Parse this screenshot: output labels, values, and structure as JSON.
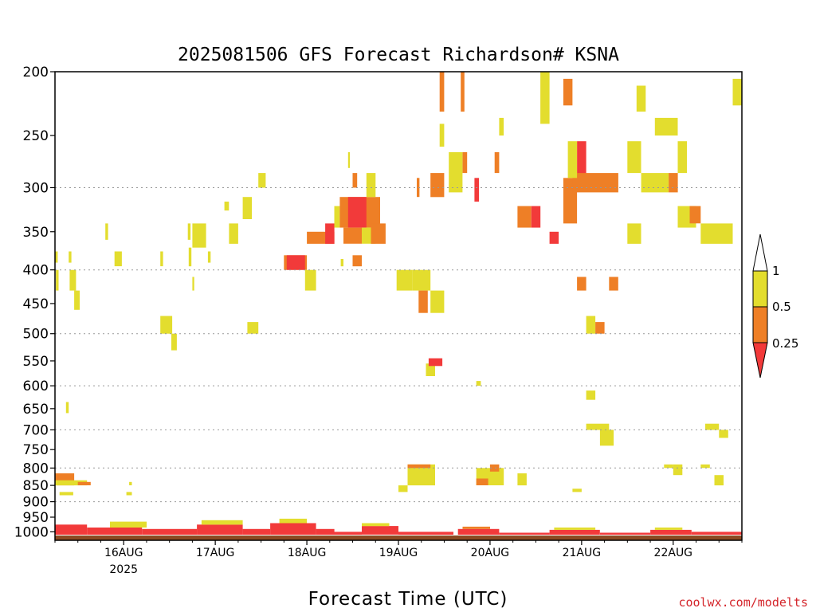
{
  "colors": {
    "level_low": "#f23a3a",
    "level_mid": "#ee7f26",
    "level_high": "#e3dd2e",
    "ground": "#8b4a22",
    "credit": "#d4242a"
  },
  "chart_data": {
    "type": "heatmap",
    "title": "2025081506 GFS Forecast Richardson# KSNA",
    "xlabel": "Forecast Time (UTC)",
    "ylabel": "",
    "credit": "coolwx.com/modelts",
    "y_scale": "log",
    "ylim": [
      1030,
      200
    ],
    "y_ticks": [
      200,
      250,
      300,
      350,
      400,
      450,
      500,
      550,
      600,
      650,
      700,
      750,
      800,
      850,
      900,
      950,
      1000
    ],
    "gridlines_at": [
      300,
      400,
      500,
      600,
      700,
      800,
      900
    ],
    "xlim_days": [
      15.25,
      22.75
    ],
    "x_ticks": [
      {
        "day": 16,
        "label": "16AUG",
        "sublabel": "2025"
      },
      {
        "day": 17,
        "label": "17AUG"
      },
      {
        "day": 18,
        "label": "18AUG"
      },
      {
        "day": 19,
        "label": "19AUG"
      },
      {
        "day": 20,
        "label": "20AUG"
      },
      {
        "day": 21,
        "label": "21AUG"
      },
      {
        "day": 22,
        "label": "22AUG"
      }
    ],
    "legend": {
      "placement": "right",
      "labels": [
        "1",
        "0.5",
        "0.25"
      ],
      "bins": [
        {
          "range": "0.5–1",
          "color": "#e3dd2e"
        },
        {
          "range": "0.25–0.5",
          "color": "#ee7f26"
        },
        {
          "range": "<0.25",
          "color": "#f23a3a"
        }
      ]
    },
    "cells": [
      {
        "t0": 15.25,
        "t1": 15.28,
        "p0": 375,
        "p1": 390,
        "bin": "high"
      },
      {
        "t0": 15.26,
        "t1": 15.29,
        "p0": 400,
        "p1": 430,
        "bin": "high"
      },
      {
        "t0": 15.4,
        "t1": 15.43,
        "p0": 375,
        "p1": 390,
        "bin": "high"
      },
      {
        "t0": 15.41,
        "t1": 15.48,
        "p0": 400,
        "p1": 430,
        "bin": "high"
      },
      {
        "t0": 15.46,
        "t1": 15.52,
        "p0": 430,
        "p1": 460,
        "bin": "high"
      },
      {
        "t0": 15.37,
        "t1": 15.4,
        "p0": 635,
        "p1": 660,
        "bin": "high"
      },
      {
        "t0": 15.25,
        "t1": 15.46,
        "p0": 815,
        "p1": 850,
        "bin": "mid"
      },
      {
        "t0": 15.25,
        "t1": 15.6,
        "p0": 835,
        "p1": 850,
        "bin": "high"
      },
      {
        "t0": 15.5,
        "t1": 15.64,
        "p0": 840,
        "p1": 850,
        "bin": "mid"
      },
      {
        "t0": 15.3,
        "t1": 15.45,
        "p0": 870,
        "p1": 880,
        "bin": "high"
      },
      {
        "t0": 15.8,
        "t1": 15.83,
        "p0": 340,
        "p1": 360,
        "bin": "high"
      },
      {
        "t0": 15.9,
        "t1": 15.98,
        "p0": 375,
        "p1": 395,
        "bin": "high"
      },
      {
        "t0": 16.03,
        "t1": 16.09,
        "p0": 870,
        "p1": 880,
        "bin": "high"
      },
      {
        "t0": 16.06,
        "t1": 16.09,
        "p0": 840,
        "p1": 850,
        "bin": "high"
      },
      {
        "t0": 16.4,
        "t1": 16.43,
        "p0": 375,
        "p1": 395,
        "bin": "high"
      },
      {
        "t0": 16.4,
        "t1": 16.53,
        "p0": 470,
        "p1": 500,
        "bin": "high"
      },
      {
        "t0": 16.52,
        "t1": 16.58,
        "p0": 500,
        "p1": 530,
        "bin": "high"
      },
      {
        "t0": 16.7,
        "t1": 16.73,
        "p0": 340,
        "p1": 360,
        "bin": "high"
      },
      {
        "t0": 16.75,
        "t1": 16.9,
        "p0": 340,
        "p1": 370,
        "bin": "high"
      },
      {
        "t0": 16.71,
        "t1": 16.74,
        "p0": 370,
        "p1": 395,
        "bin": "high"
      },
      {
        "t0": 16.75,
        "t1": 16.77,
        "p0": 410,
        "p1": 430,
        "bin": "high"
      },
      {
        "t0": 16.92,
        "t1": 16.95,
        "p0": 375,
        "p1": 390,
        "bin": "high"
      },
      {
        "t0": 17.1,
        "t1": 17.15,
        "p0": 315,
        "p1": 325,
        "bin": "high"
      },
      {
        "t0": 17.15,
        "t1": 17.25,
        "p0": 340,
        "p1": 365,
        "bin": "high"
      },
      {
        "t0": 17.3,
        "t1": 17.4,
        "p0": 310,
        "p1": 335,
        "bin": "high"
      },
      {
        "t0": 17.35,
        "t1": 17.47,
        "p0": 480,
        "p1": 500,
        "bin": "high"
      },
      {
        "t0": 17.47,
        "t1": 17.55,
        "p0": 285,
        "p1": 300,
        "bin": "high"
      },
      {
        "t0": 17.75,
        "t1": 18.0,
        "p0": 380,
        "p1": 400,
        "bin": "mid"
      },
      {
        "t0": 17.78,
        "t1": 17.98,
        "p0": 380,
        "p1": 400,
        "bin": "low"
      },
      {
        "t0": 17.98,
        "t1": 18.1,
        "p0": 400,
        "p1": 430,
        "bin": "high"
      },
      {
        "t0": 18.0,
        "t1": 18.3,
        "p0": 350,
        "p1": 365,
        "bin": "mid"
      },
      {
        "t0": 18.2,
        "t1": 18.3,
        "p0": 340,
        "p1": 365,
        "bin": "low"
      },
      {
        "t0": 18.37,
        "t1": 18.4,
        "p0": 385,
        "p1": 395,
        "bin": "high"
      },
      {
        "t0": 18.3,
        "t1": 18.36,
        "p0": 320,
        "p1": 345,
        "bin": "high"
      },
      {
        "t0": 18.36,
        "t1": 18.8,
        "p0": 310,
        "p1": 345,
        "bin": "mid"
      },
      {
        "t0": 18.45,
        "t1": 18.65,
        "p0": 310,
        "p1": 345,
        "bin": "low"
      },
      {
        "t0": 18.45,
        "t1": 18.47,
        "p0": 265,
        "p1": 280,
        "bin": "high"
      },
      {
        "t0": 18.5,
        "t1": 18.55,
        "p0": 285,
        "p1": 300,
        "bin": "mid"
      },
      {
        "t0": 18.65,
        "t1": 18.75,
        "p0": 285,
        "p1": 310,
        "bin": "high"
      },
      {
        "t0": 18.4,
        "t1": 18.6,
        "p0": 345,
        "p1": 365,
        "bin": "mid"
      },
      {
        "t0": 18.5,
        "t1": 18.6,
        "p0": 380,
        "p1": 395,
        "bin": "mid"
      },
      {
        "t0": 18.6,
        "t1": 18.75,
        "p0": 345,
        "p1": 365,
        "bin": "high"
      },
      {
        "t0": 18.7,
        "t1": 18.86,
        "p0": 340,
        "p1": 365,
        "bin": "mid"
      },
      {
        "t0": 18.98,
        "t1": 19.15,
        "p0": 400,
        "p1": 430,
        "bin": "high"
      },
      {
        "t0": 19.15,
        "t1": 19.35,
        "p0": 400,
        "p1": 430,
        "bin": "high"
      },
      {
        "t0": 19.22,
        "t1": 19.32,
        "p0": 430,
        "p1": 465,
        "bin": "mid"
      },
      {
        "t0": 19.35,
        "t1": 19.5,
        "p0": 430,
        "p1": 465,
        "bin": "high"
      },
      {
        "t0": 19.3,
        "t1": 19.4,
        "p0": 580,
        "p1": 555,
        "bin": "high"
      },
      {
        "t0": 19.33,
        "t1": 19.48,
        "p0": 545,
        "p1": 560,
        "bin": "low"
      },
      {
        "t0": 19.2,
        "t1": 19.23,
        "p0": 290,
        "p1": 310,
        "bin": "mid"
      },
      {
        "t0": 19.35,
        "t1": 19.5,
        "p0": 285,
        "p1": 310,
        "bin": "mid"
      },
      {
        "t0": 19.45,
        "t1": 19.5,
        "p0": 200,
        "p1": 230,
        "bin": "mid"
      },
      {
        "t0": 19.45,
        "t1": 19.5,
        "p0": 240,
        "p1": 260,
        "bin": "high"
      },
      {
        "t0": 19.55,
        "t1": 19.7,
        "p0": 265,
        "p1": 305,
        "bin": "high"
      },
      {
        "t0": 19.68,
        "t1": 19.72,
        "p0": 200,
        "p1": 230,
        "bin": "mid"
      },
      {
        "t0": 19.7,
        "t1": 19.75,
        "p0": 265,
        "p1": 285,
        "bin": "mid"
      },
      {
        "t0": 19.83,
        "t1": 19.88,
        "p0": 290,
        "p1": 315,
        "bin": "low"
      },
      {
        "t0": 19.85,
        "t1": 19.9,
        "p0": 590,
        "p1": 600,
        "bin": "high"
      },
      {
        "t0": 20.05,
        "t1": 20.1,
        "p0": 265,
        "p1": 285,
        "bin": "mid"
      },
      {
        "t0": 20.1,
        "t1": 20.15,
        "p0": 235,
        "p1": 250,
        "bin": "high"
      },
      {
        "t0": 20.3,
        "t1": 20.45,
        "p0": 320,
        "p1": 345,
        "bin": "mid"
      },
      {
        "t0": 20.45,
        "t1": 20.55,
        "p0": 320,
        "p1": 345,
        "bin": "low"
      },
      {
        "t0": 20.55,
        "t1": 20.65,
        "p0": 200,
        "p1": 240,
        "bin": "high"
      },
      {
        "t0": 20.65,
        "t1": 20.75,
        "p0": 350,
        "p1": 365,
        "bin": "low"
      },
      {
        "t0": 20.8,
        "t1": 20.9,
        "p0": 205,
        "p1": 225,
        "bin": "mid"
      },
      {
        "t0": 20.8,
        "t1": 20.95,
        "p0": 290,
        "p1": 340,
        "bin": "mid"
      },
      {
        "t0": 20.95,
        "t1": 21.05,
        "p0": 255,
        "p1": 290,
        "bin": "low"
      },
      {
        "t0": 20.9,
        "t1": 21.4,
        "p0": 285,
        "p1": 305,
        "bin": "mid"
      },
      {
        "t0": 20.85,
        "t1": 20.95,
        "p0": 255,
        "p1": 290,
        "bin": "high"
      },
      {
        "t0": 20.95,
        "t1": 21.05,
        "p0": 410,
        "p1": 430,
        "bin": "mid"
      },
      {
        "t0": 21.05,
        "t1": 21.15,
        "p0": 470,
        "p1": 500,
        "bin": "high"
      },
      {
        "t0": 21.15,
        "t1": 21.25,
        "p0": 480,
        "p1": 500,
        "bin": "mid"
      },
      {
        "t0": 21.3,
        "t1": 21.4,
        "p0": 410,
        "p1": 430,
        "bin": "mid"
      },
      {
        "t0": 21.05,
        "t1": 21.15,
        "p0": 610,
        "p1": 630,
        "bin": "high"
      },
      {
        "t0": 21.05,
        "t1": 21.3,
        "p0": 685,
        "p1": 700,
        "bin": "high"
      },
      {
        "t0": 21.2,
        "t1": 21.35,
        "p0": 700,
        "p1": 740,
        "bin": "high"
      },
      {
        "t0": 21.5,
        "t1": 21.65,
        "p0": 255,
        "p1": 285,
        "bin": "high"
      },
      {
        "t0": 21.5,
        "t1": 21.65,
        "p0": 340,
        "p1": 365,
        "bin": "high"
      },
      {
        "t0": 21.6,
        "t1": 21.7,
        "p0": 210,
        "p1": 230,
        "bin": "high"
      },
      {
        "t0": 21.65,
        "t1": 21.95,
        "p0": 285,
        "p1": 305,
        "bin": "high"
      },
      {
        "t0": 21.8,
        "t1": 22.05,
        "p0": 235,
        "p1": 250,
        "bin": "high"
      },
      {
        "t0": 21.95,
        "t1": 22.05,
        "p0": 285,
        "p1": 305,
        "bin": "mid"
      },
      {
        "t0": 22.05,
        "t1": 22.15,
        "p0": 255,
        "p1": 285,
        "bin": "high"
      },
      {
        "t0": 22.05,
        "t1": 22.25,
        "p0": 320,
        "p1": 345,
        "bin": "high"
      },
      {
        "t0": 22.18,
        "t1": 22.3,
        "p0": 320,
        "p1": 340,
        "bin": "mid"
      },
      {
        "t0": 22.3,
        "t1": 22.65,
        "p0": 340,
        "p1": 365,
        "bin": "high"
      },
      {
        "t0": 22.65,
        "t1": 22.75,
        "p0": 205,
        "p1": 225,
        "bin": "high"
      },
      {
        "t0": 22.35,
        "t1": 22.5,
        "p0": 685,
        "p1": 700,
        "bin": "high"
      },
      {
        "t0": 22.5,
        "t1": 22.6,
        "p0": 700,
        "p1": 720,
        "bin": "high"
      },
      {
        "t0": 21.9,
        "t1": 22.0,
        "p0": 790,
        "p1": 800,
        "bin": "high"
      },
      {
        "t0": 22.0,
        "t1": 22.1,
        "p0": 790,
        "p1": 820,
        "bin": "high"
      },
      {
        "t0": 22.3,
        "t1": 22.4,
        "p0": 790,
        "p1": 800,
        "bin": "high"
      },
      {
        "t0": 22.45,
        "t1": 22.55,
        "p0": 820,
        "p1": 850,
        "bin": "high"
      },
      {
        "t0": 19.1,
        "t1": 19.4,
        "p0": 790,
        "p1": 850,
        "bin": "high"
      },
      {
        "t0": 19.1,
        "t1": 19.35,
        "p0": 790,
        "p1": 800,
        "bin": "mid"
      },
      {
        "t0": 19.0,
        "t1": 19.1,
        "p0": 850,
        "p1": 870,
        "bin": "high"
      },
      {
        "t0": 19.85,
        "t1": 20.15,
        "p0": 800,
        "p1": 850,
        "bin": "high"
      },
      {
        "t0": 19.85,
        "t1": 19.98,
        "p0": 830,
        "p1": 850,
        "bin": "mid"
      },
      {
        "t0": 20.0,
        "t1": 20.1,
        "p0": 790,
        "p1": 810,
        "bin": "mid"
      },
      {
        "t0": 20.3,
        "t1": 20.4,
        "p0": 815,
        "p1": 850,
        "bin": "high"
      },
      {
        "t0": 20.9,
        "t1": 21.0,
        "p0": 860,
        "p1": 870,
        "bin": "high"
      },
      {
        "t0": 15.25,
        "t1": 15.6,
        "p0": 975,
        "p1": 1010,
        "bin": "low"
      },
      {
        "t0": 15.6,
        "t1": 16.2,
        "p0": 985,
        "p1": 1010,
        "bin": "low"
      },
      {
        "t0": 15.85,
        "t1": 16.25,
        "p0": 965,
        "p1": 985,
        "bin": "high"
      },
      {
        "t0": 16.2,
        "t1": 16.8,
        "p0": 990,
        "p1": 1010,
        "bin": "low"
      },
      {
        "t0": 16.8,
        "t1": 17.3,
        "p0": 975,
        "p1": 1010,
        "bin": "low"
      },
      {
        "t0": 16.85,
        "t1": 17.3,
        "p0": 960,
        "p1": 975,
        "bin": "high"
      },
      {
        "t0": 17.3,
        "t1": 17.6,
        "p0": 990,
        "p1": 1010,
        "bin": "low"
      },
      {
        "t0": 17.6,
        "t1": 18.1,
        "p0": 970,
        "p1": 1010,
        "bin": "low"
      },
      {
        "t0": 17.7,
        "t1": 18.0,
        "p0": 955,
        "p1": 970,
        "bin": "high"
      },
      {
        "t0": 18.1,
        "t1": 18.3,
        "p0": 990,
        "p1": 1010,
        "bin": "low"
      },
      {
        "t0": 18.3,
        "t1": 18.6,
        "p0": 1000,
        "p1": 1010,
        "bin": "low"
      },
      {
        "t0": 18.6,
        "t1": 19.0,
        "p0": 980,
        "p1": 1010,
        "bin": "low"
      },
      {
        "t0": 18.6,
        "t1": 18.9,
        "p0": 970,
        "p1": 980,
        "bin": "high"
      },
      {
        "t0": 19.0,
        "t1": 19.6,
        "p0": 1000,
        "p1": 1010,
        "bin": "low"
      },
      {
        "t0": 19.65,
        "t1": 20.1,
        "p0": 990,
        "p1": 1010,
        "bin": "low"
      },
      {
        "t0": 19.7,
        "t1": 20.0,
        "p0": 982,
        "p1": 990,
        "bin": "mid"
      },
      {
        "t0": 20.1,
        "t1": 20.65,
        "p0": 1003,
        "p1": 1010,
        "bin": "low"
      },
      {
        "t0": 20.65,
        "t1": 21.2,
        "p0": 993,
        "p1": 1010,
        "bin": "low"
      },
      {
        "t0": 20.7,
        "t1": 21.15,
        "p0": 985,
        "p1": 993,
        "bin": "high"
      },
      {
        "t0": 21.2,
        "t1": 21.75,
        "p0": 1003,
        "p1": 1010,
        "bin": "low"
      },
      {
        "t0": 21.75,
        "t1": 22.2,
        "p0": 993,
        "p1": 1010,
        "bin": "low"
      },
      {
        "t0": 21.8,
        "t1": 22.1,
        "p0": 985,
        "p1": 993,
        "bin": "high"
      },
      {
        "t0": 22.2,
        "t1": 22.75,
        "p0": 1000,
        "p1": 1010,
        "bin": "low"
      }
    ]
  }
}
